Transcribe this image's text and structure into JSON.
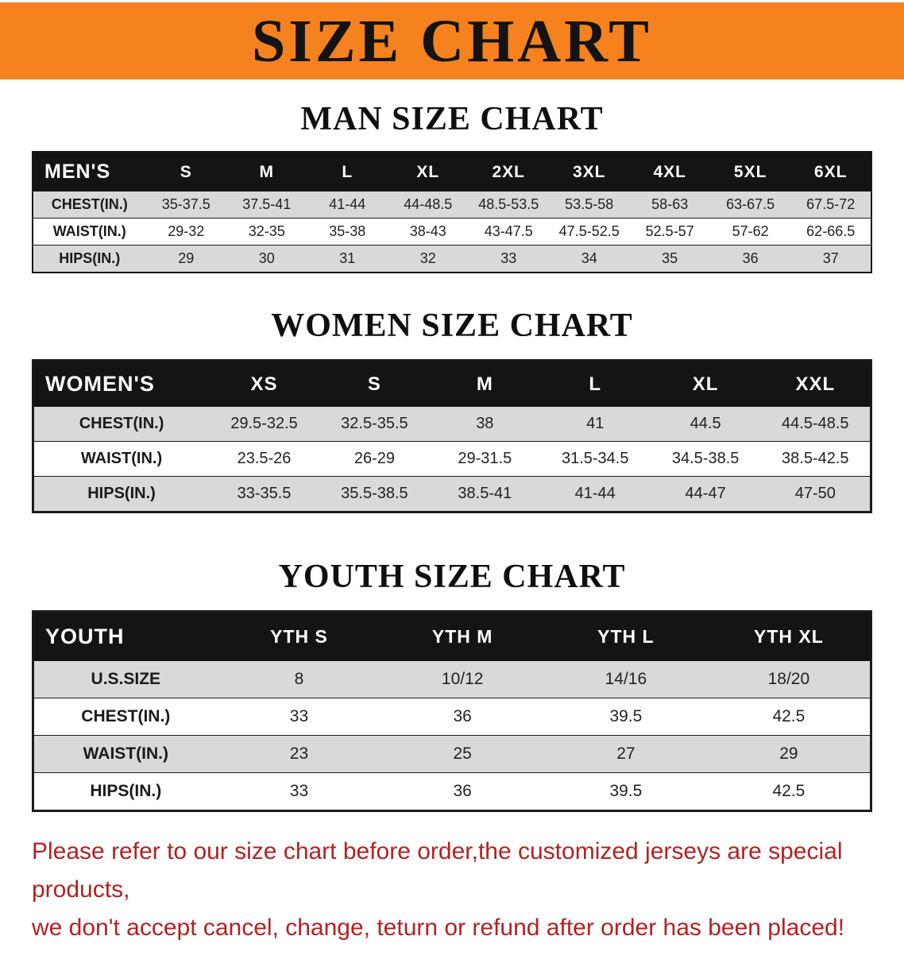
{
  "banner": {
    "title": "SIZE CHART",
    "bg_color": "#f5821f",
    "text_color": "#131313"
  },
  "colors": {
    "banner_bg": "#f5821f",
    "header_bar": "#141414",
    "stripe": "#d9d9d9",
    "disclaimer": "#b22222"
  },
  "sections": [
    {
      "id": "men",
      "heading": "MAN SIZE CHART",
      "table": {
        "header": [
          "MEN'S",
          "S",
          "M",
          "L",
          "XL",
          "2XL",
          "3XL",
          "4XL",
          "5XL",
          "6XL"
        ],
        "rows": [
          [
            "CHEST(IN.)",
            "35-37.5",
            "37.5-41",
            "41-44",
            "44-48.5",
            "48.5-53.5",
            "53.5-58",
            "58-63",
            "63-67.5",
            "67.5-72"
          ],
          [
            "WAIST(IN.)",
            "29-32",
            "32-35",
            "35-38",
            "38-43",
            "43-47.5",
            "47.5-52.5",
            "52.5-57",
            "57-62",
            "62-66.5"
          ],
          [
            "HIPS(IN.)",
            "29",
            "30",
            "31",
            "32",
            "33",
            "34",
            "35",
            "36",
            "37"
          ]
        ]
      }
    },
    {
      "id": "women",
      "heading": "WOMEN SIZE CHART",
      "table": {
        "header": [
          "WOMEN'S",
          "XS",
          "S",
          "M",
          "L",
          "XL",
          "XXL"
        ],
        "rows": [
          [
            "CHEST(IN.)",
            "29.5-32.5",
            "32.5-35.5",
            "38",
            "41",
            "44.5",
            "44.5-48.5"
          ],
          [
            "WAIST(IN.)",
            "23.5-26",
            "26-29",
            "29-31.5",
            "31.5-34.5",
            "34.5-38.5",
            "38.5-42.5"
          ],
          [
            "HIPS(IN.)",
            "33-35.5",
            "35.5-38.5",
            "38.5-41",
            "41-44",
            "44-47",
            "47-50"
          ]
        ]
      }
    },
    {
      "id": "youth",
      "heading": "YOUTH SIZE CHART",
      "table": {
        "header": [
          "YOUTH",
          "YTH S",
          "YTH M",
          "YTH L",
          "YTH XL"
        ],
        "rows": [
          [
            "U.S.SIZE",
            "8",
            "10/12",
            "14/16",
            "18/20"
          ],
          [
            "CHEST(IN.)",
            "33",
            "36",
            "39.5",
            "42.5"
          ],
          [
            "WAIST(IN.)",
            "23",
            "25",
            "27",
            "29"
          ],
          [
            "HIPS(IN.)",
            "33",
            "36",
            "39.5",
            "42.5"
          ]
        ]
      }
    }
  ],
  "disclaimer": {
    "line1": "Please refer to our size chart before order,the customized jerseys are special products,",
    "line2": "we don't accept cancel, change, teturn or refund after order has been placed!"
  }
}
